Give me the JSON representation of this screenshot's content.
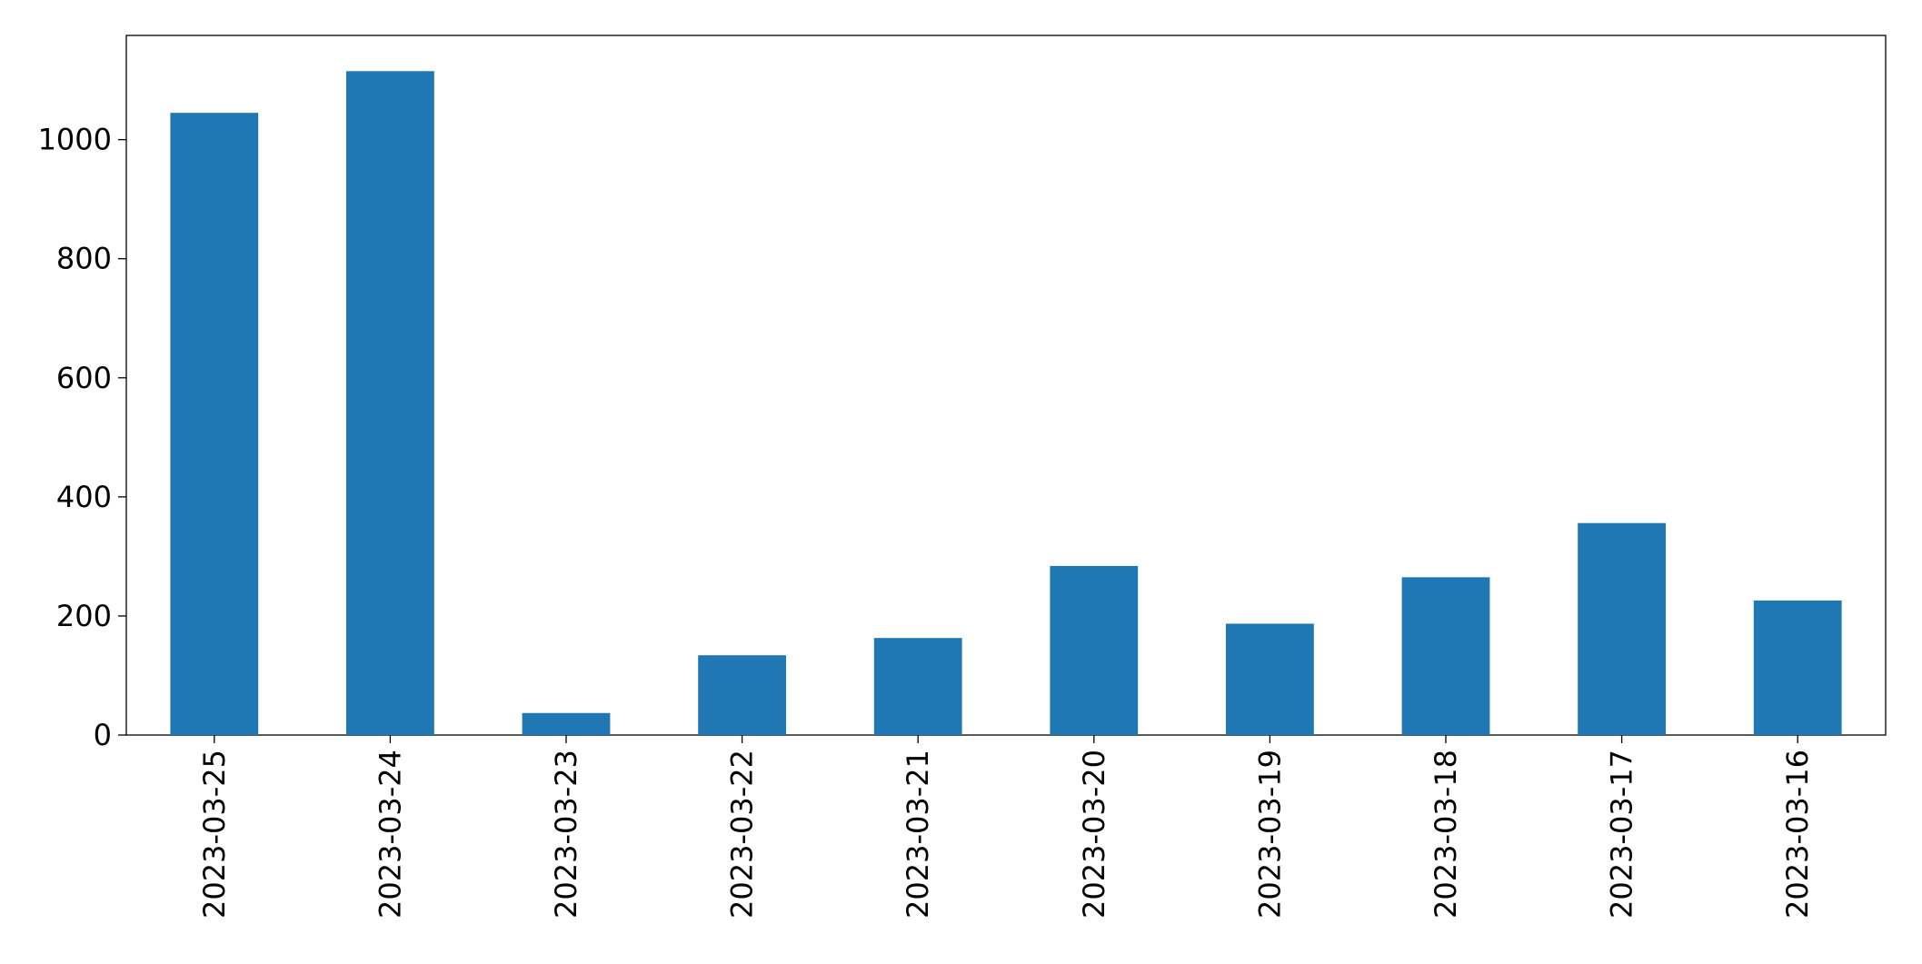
{
  "chart_data": {
    "type": "bar",
    "categories": [
      "2023-03-25",
      "2023-03-24",
      "2023-03-23",
      "2023-03-22",
      "2023-03-21",
      "2023-03-20",
      "2023-03-19",
      "2023-03-18",
      "2023-03-17",
      "2023-03-16"
    ],
    "values": [
      1045,
      1115,
      37,
      134,
      163,
      284,
      187,
      265,
      356,
      226
    ],
    "color": "#1f77b4",
    "ylim": [
      0,
      1175
    ],
    "yticks": [
      0,
      200,
      400,
      600,
      800,
      1000
    ],
    "grid": false
  }
}
